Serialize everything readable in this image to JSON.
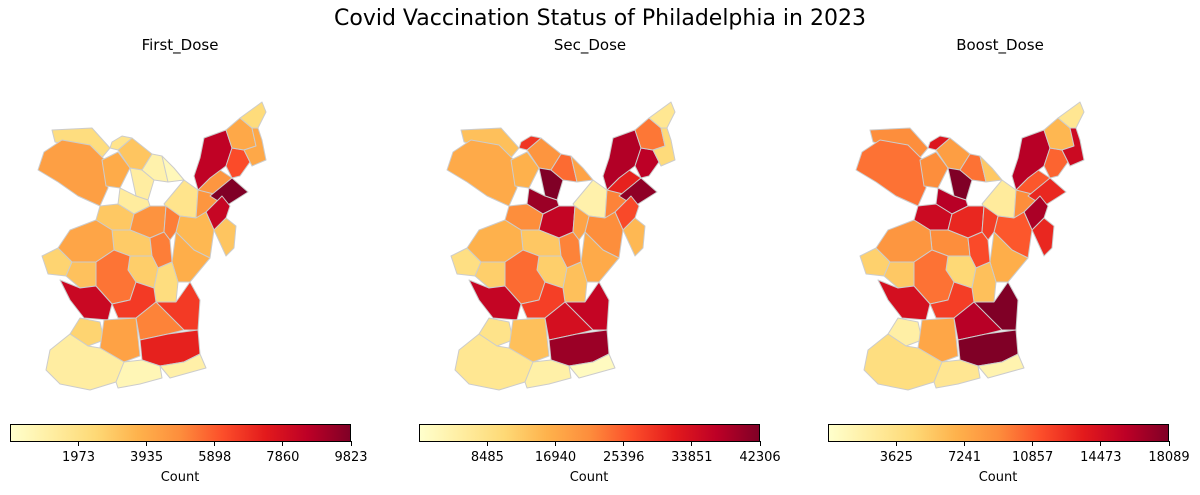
{
  "title": "Covid Vaccination Status of Philadelphia in 2023",
  "panels": [
    {
      "title": "First_Dose",
      "vmax": 9823,
      "ticks": [
        "1973",
        "3935",
        "5898",
        "7860",
        "9823"
      ],
      "label": "Count"
    },
    {
      "title": "Sec_Dose",
      "vmax": 42306,
      "ticks": [
        "8485",
        "16940",
        "25396",
        "33851",
        "42306"
      ],
      "label": "Count"
    },
    {
      "title": "Boost_Dose",
      "vmax": 18089,
      "ticks": [
        "3625",
        "7241",
        "10857",
        "14473",
        "18089"
      ],
      "label": "Count"
    }
  ],
  "colormap": [
    "#ffffcc",
    "#ffeda0",
    "#fed976",
    "#feb24c",
    "#fd8d3c",
    "#fc4e2a",
    "#e31a1c",
    "#bd0026",
    "#800026"
  ],
  "edge_color": "#cccccc",
  "chart_data": [
    {
      "type": "choropleth",
      "title": "First_Dose",
      "colorbar_label": "Count",
      "colorbar_ticks": [
        1973,
        3935,
        5898,
        7860,
        9823
      ],
      "vmax": 9823,
      "region_values": [
        2200,
        4300,
        3900,
        3100,
        1800,
        1200,
        1300,
        900,
        500,
        3000,
        4700,
        1800,
        4600,
        4600,
        8500,
        9823,
        6200,
        4000,
        2300,
        4000,
        8300,
        3500,
        3100,
        5200,
        2900,
        4100,
        5200,
        2800,
        3800,
        2600,
        3200,
        5400,
        2200,
        8200,
        6600,
        2600,
        4200,
        5100,
        6600,
        7200,
        1200,
        600,
        1000
      ]
    },
    {
      "type": "choropleth",
      "title": "Sec_Dose",
      "colorbar_label": "Count",
      "colorbar_ticks": [
        8485,
        16940,
        25396,
        33851,
        42306
      ],
      "vmax": 42306,
      "region_values": [
        14000,
        17000,
        16000,
        20000,
        29000,
        42306,
        40000,
        24000,
        18000,
        21000,
        36000,
        4000,
        22000,
        31000,
        38000,
        41000,
        37000,
        23000,
        7000,
        10000,
        27000,
        21000,
        15000,
        18000,
        13000,
        16000,
        22000,
        12000,
        17000,
        9000,
        12000,
        24000,
        14000,
        36000,
        28000,
        8000,
        14000,
        34000,
        36000,
        40000,
        7000,
        4500,
        1500
      ]
    },
    {
      "type": "choropleth",
      "title": "Boost_Dose",
      "colorbar_label": "Count",
      "colorbar_ticks": [
        3625,
        7241,
        10857,
        14473,
        18089
      ],
      "vmax": 18089,
      "region_values": [
        9000,
        10000,
        9000,
        8000,
        14000,
        18089,
        16000,
        10000,
        5500,
        15000,
        13000,
        2500,
        9000,
        11000,
        16000,
        13000,
        10500,
        6500,
        3000,
        15000,
        16500,
        11000,
        13000,
        12000,
        9000,
        8500,
        11500,
        4500,
        7000,
        5000,
        5500,
        10000,
        6000,
        14500,
        12000,
        2000,
        7500,
        16000,
        18089,
        18089,
        4000,
        3000,
        1500
      ]
    }
  ]
}
